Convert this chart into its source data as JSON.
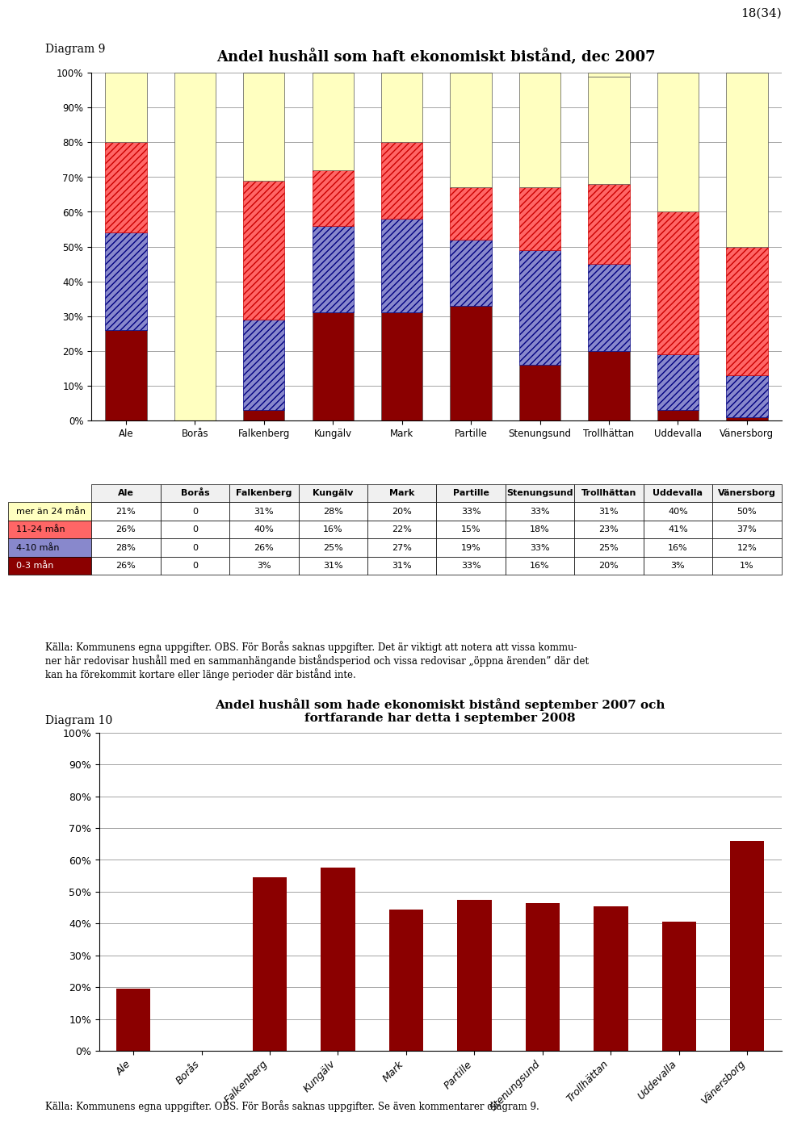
{
  "page_number": "18(34)",
  "diagram9_label": "Diagram 9",
  "diagram10_label": "Diagram 10",
  "chart1_title": "Andel hushåll som haft ekonomiskt bistånd, dec 2007",
  "chart2_title": "Andel hushåll som hade ekonomiskt bistånd september 2007 och\nfortfarande har detta i september 2008",
  "categories": [
    "Ale",
    "Borås",
    "Falkenberg",
    "Kungälv",
    "Mark",
    "Partille",
    "Stenungsund",
    "Trollhättan",
    "Uddevalla",
    "Vänersborg"
  ],
  "series": {
    "mer_an_24": [
      21,
      0,
      31,
      28,
      20,
      33,
      33,
      31,
      40,
      50
    ],
    "11_24": [
      26,
      0,
      40,
      16,
      22,
      15,
      18,
      23,
      41,
      37
    ],
    "4_10": [
      28,
      0,
      26,
      25,
      27,
      19,
      33,
      25,
      16,
      12
    ],
    "0_3": [
      26,
      0,
      3,
      31,
      31,
      33,
      16,
      20,
      3,
      1
    ]
  },
  "table_data": [
    [
      "21%",
      "0",
      "31%",
      "28%",
      "20%",
      "33%",
      "33%",
      "31%",
      "40%",
      "50%"
    ],
    [
      "26%",
      "0",
      "40%",
      "16%",
      "22%",
      "15%",
      "18%",
      "23%",
      "41%",
      "37%"
    ],
    [
      "28%",
      "0",
      "26%",
      "25%",
      "27%",
      "19%",
      "33%",
      "25%",
      "16%",
      "12%"
    ],
    [
      "26%",
      "0",
      "3%",
      "31%",
      "31%",
      "33%",
      "16%",
      "20%",
      "3%",
      "1%"
    ]
  ],
  "legend_labels": [
    "mer än 24 mån",
    "11-24 mån",
    "4-10 mån",
    "0-3 mån"
  ],
  "chart2_values": [
    19.5,
    0,
    54.5,
    57.5,
    44.5,
    47.5,
    46.5,
    45.5,
    40.5,
    66
  ],
  "caption1": "Källa: Kommunens egna uppgifter. OBS. För Borås saknas uppgifter. Det är viktigt att notera att vissa kommu-\nner här redovisar hushåll med en sammanhängande biståndsperiod och vissa redovisar „öppna ärenden” där det\nkan ha förekommit kortare eller länge perioder där bistånd inte.",
  "caption2": "Källa: Kommunens egna uppgifter. OBS. För Borås saknas uppgifter. Se även kommentarer diagram 9.",
  "bar_color_dark": "#8B0000",
  "color_yellow": "#FFFFC0",
  "color_red_hatch": "#FF6666",
  "color_blue_hatch": "#8888CC",
  "ec_red": "#CC0000",
  "ec_blue": "#000080"
}
